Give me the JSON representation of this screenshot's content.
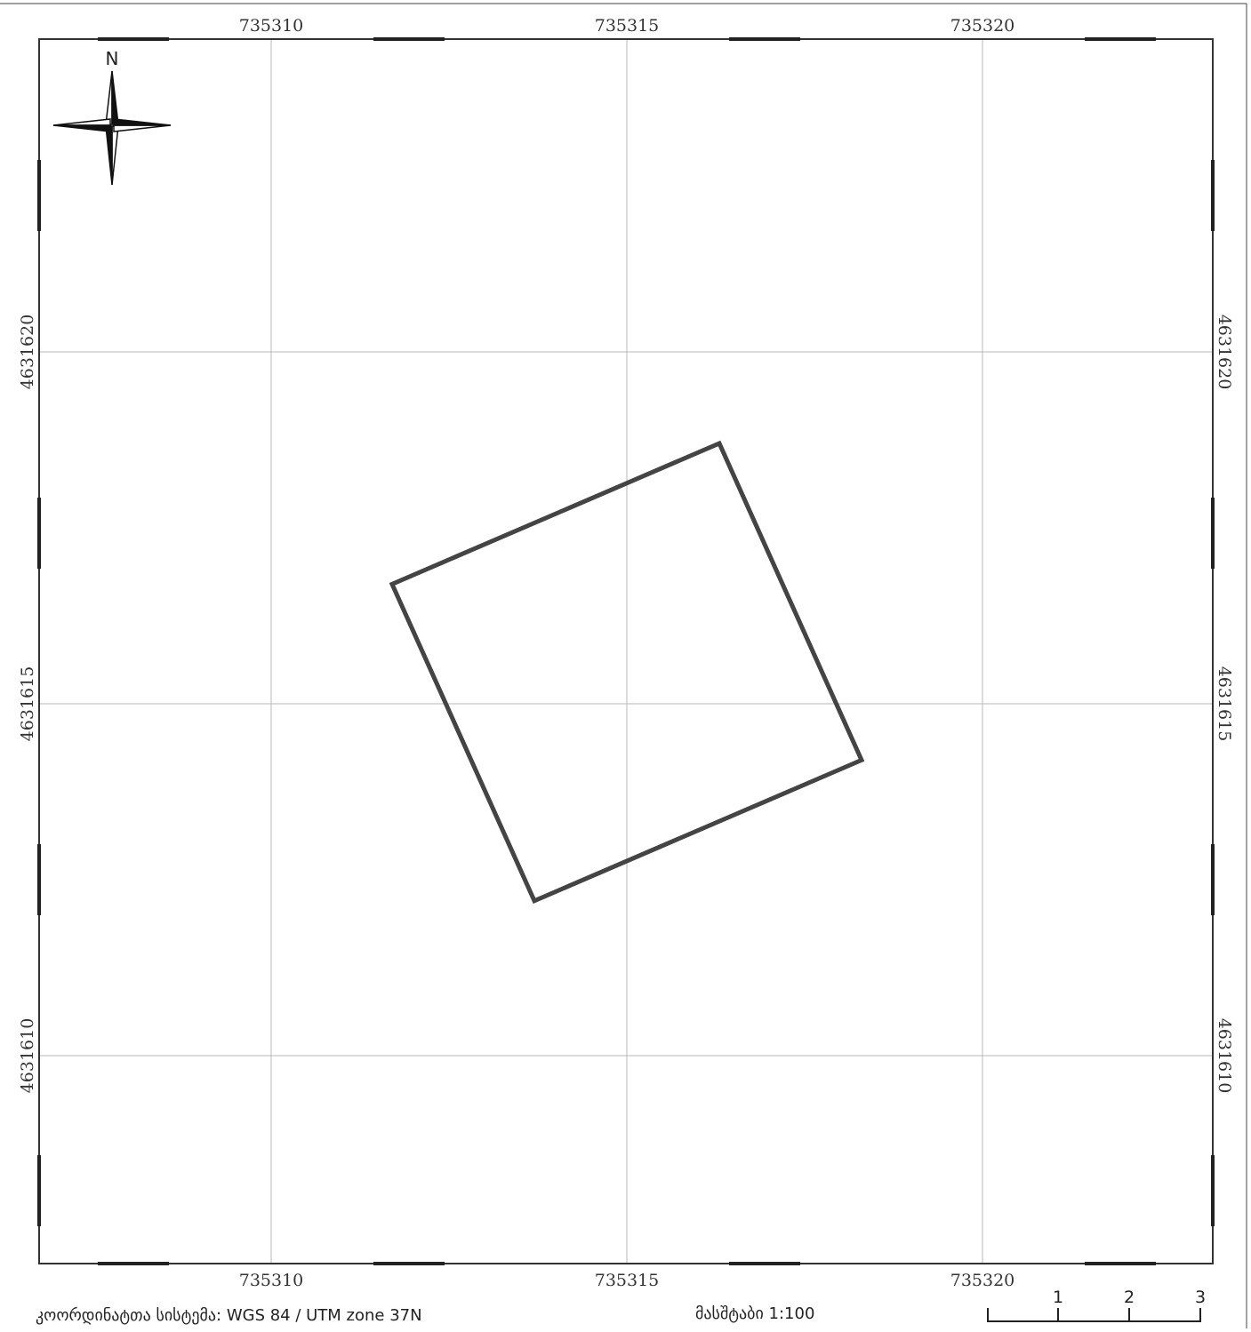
{
  "map": {
    "north_label": "N",
    "x_ticks": [
      "735310",
      "735315",
      "735320"
    ],
    "y_ticks": [
      "4631620",
      "4631615",
      "4631610"
    ],
    "parcel_polygon": [
      [
        735316.3,
        4631618.7
      ],
      [
        735318.3,
        4631614.2
      ],
      [
        735313.7,
        4631612.2
      ],
      [
        735311.7,
        4631616.7
      ]
    ]
  },
  "footer": {
    "crs_text": "კოორდინატთა სისტემა: WGS 84 / UTM zone 37N",
    "scale_text": "მასშტაბი 1:100"
  },
  "scalebar": {
    "labels": [
      "1",
      "2",
      "3"
    ]
  }
}
